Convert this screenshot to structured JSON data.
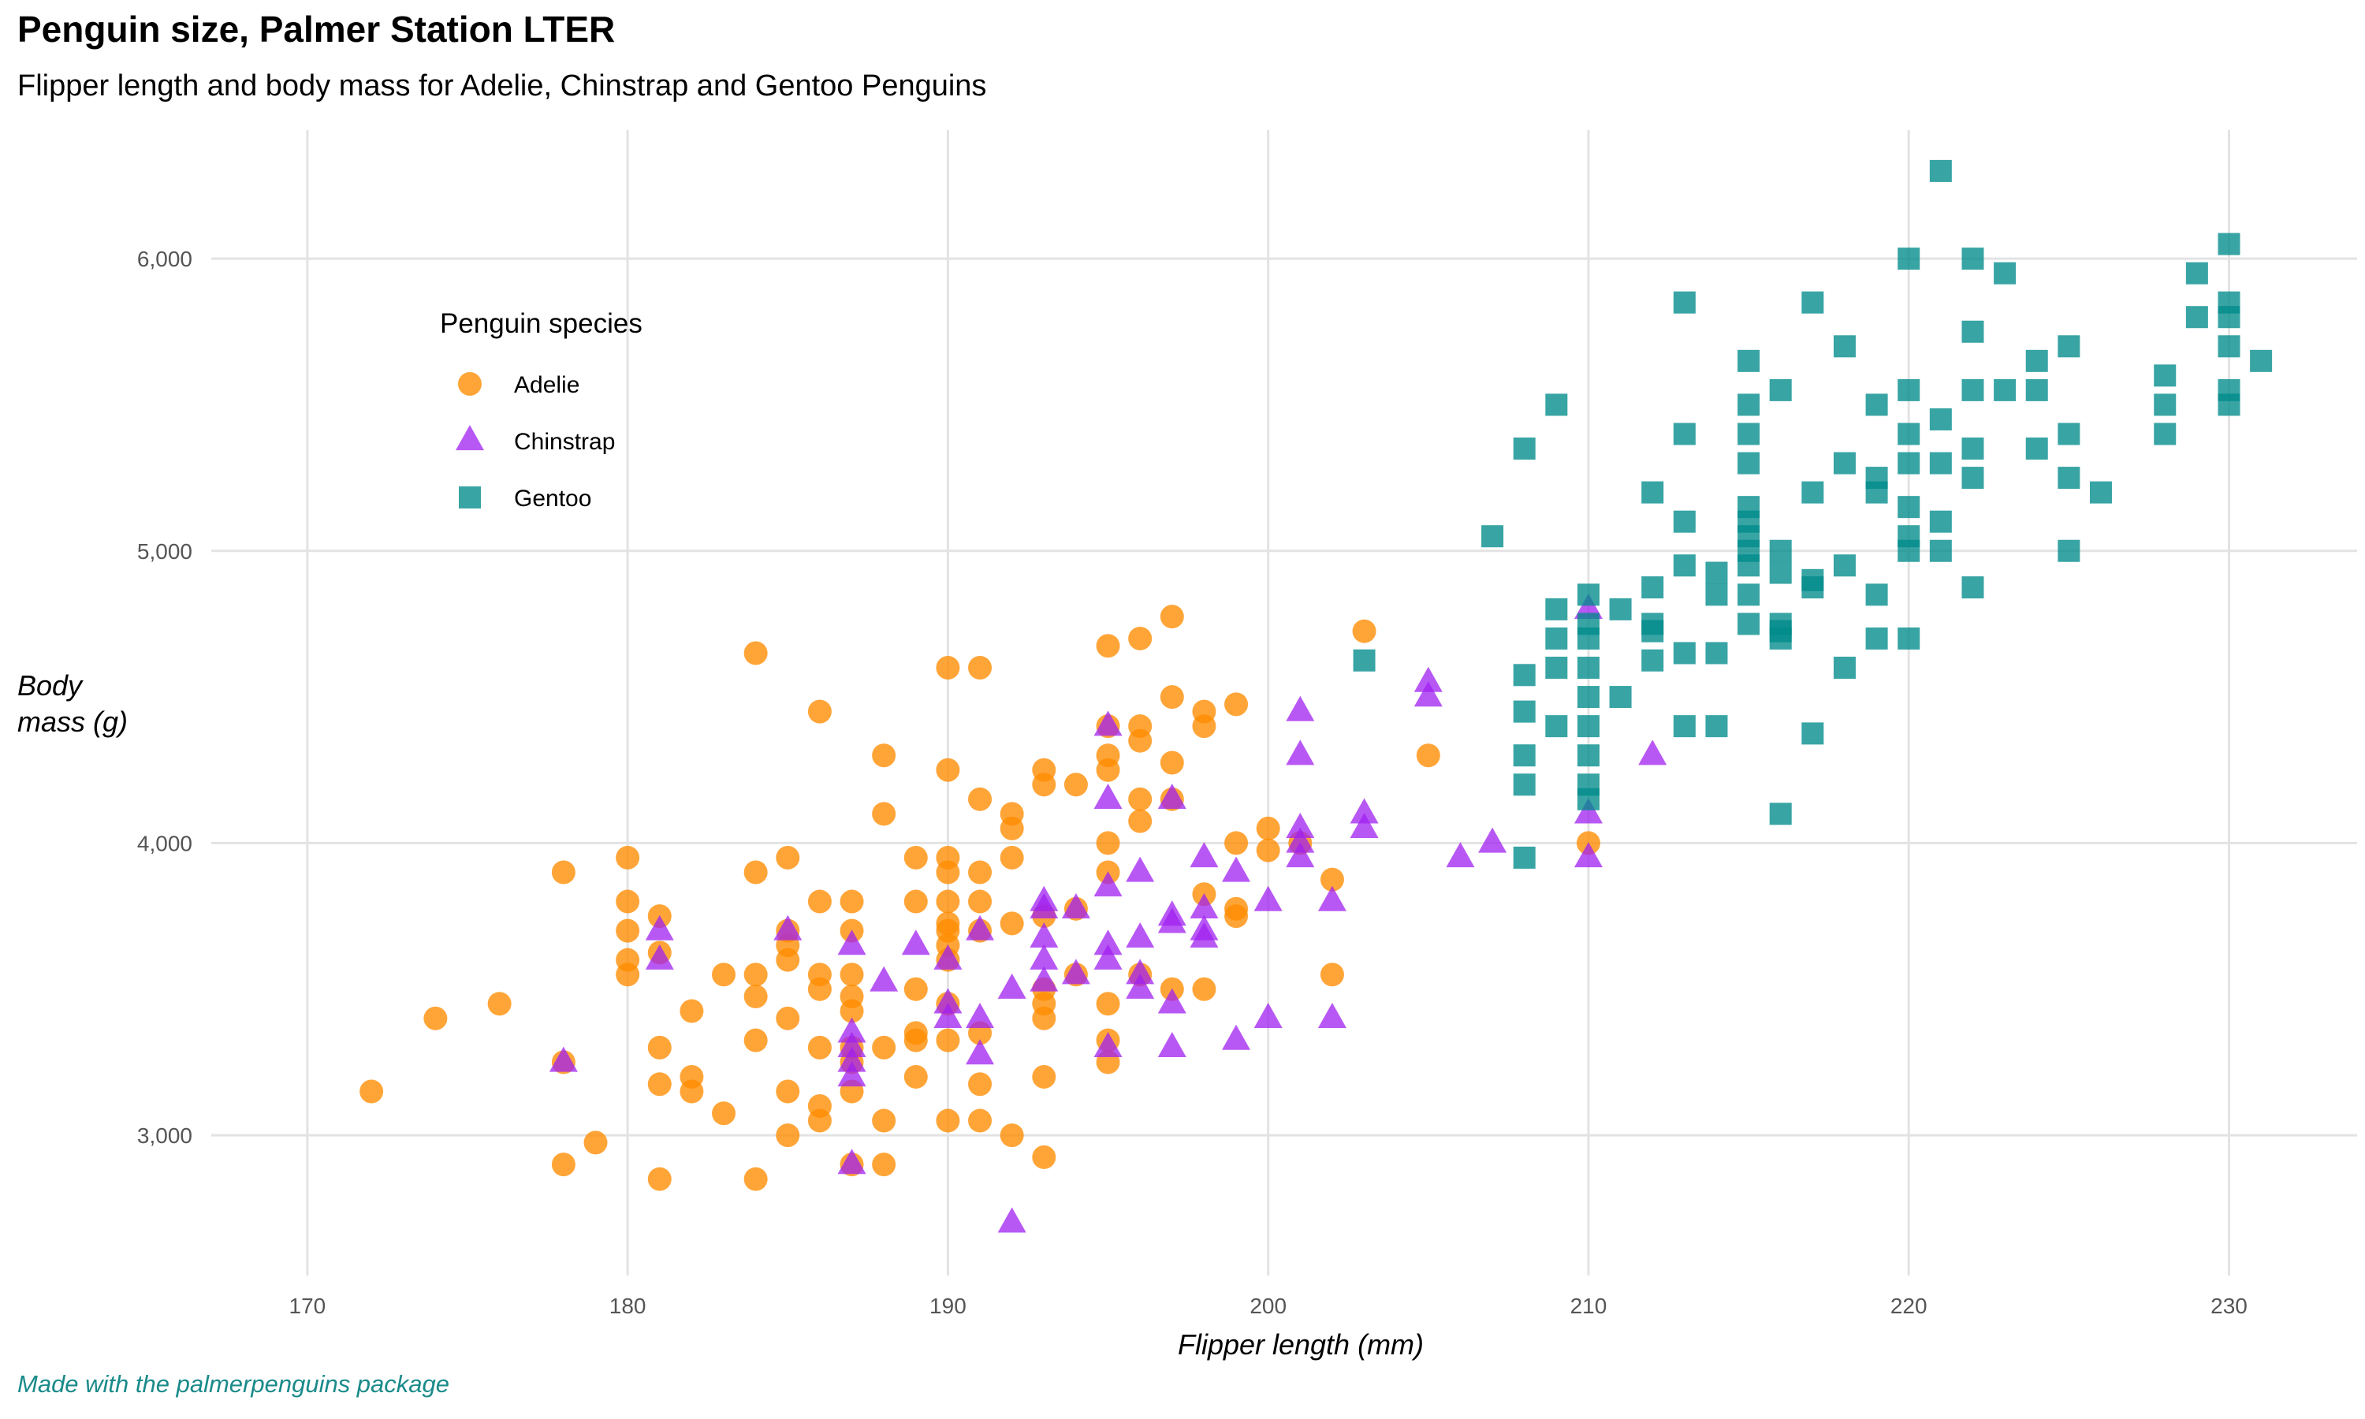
{
  "title": "Penguin size, Palmer Station LTER",
  "subtitle": "Flipper length and body mass for Adelie, Chinstrap and Gentoo Penguins",
  "caption": "Made with the palmerpenguins package",
  "chart_data": {
    "type": "scatter",
    "title": "Penguin size, Palmer Station LTER",
    "subtitle": "Flipper length and body mass for Adelie, Chinstrap and Gentoo Penguins",
    "xlabel": "Flipper length (mm)",
    "ylabel_lines": [
      "Body",
      "mass (g)"
    ],
    "xlim": [
      167,
      234
    ],
    "ylim": [
      2520,
      6440
    ],
    "xticks": [
      170,
      180,
      190,
      200,
      210,
      220,
      230
    ],
    "yticks": [
      3000,
      4000,
      5000,
      6000
    ],
    "ytick_labels": [
      "3,000",
      "4,000",
      "5,000",
      "6,000"
    ],
    "grid": true,
    "legend_title": "Penguin species",
    "legend_position": "inside-top-left",
    "series": [
      {
        "name": "Adelie",
        "shape": "circle",
        "color": "#ff8c00",
        "points": [
          [
            172,
            3150
          ],
          [
            174,
            3400
          ],
          [
            176,
            3450
          ],
          [
            178,
            2900
          ],
          [
            178,
            3900
          ],
          [
            178,
            3250
          ],
          [
            179,
            2975
          ],
          [
            180,
            3950
          ],
          [
            180,
            3800
          ],
          [
            180,
            3700
          ],
          [
            180,
            3600
          ],
          [
            180,
            3550
          ],
          [
            181,
            3750
          ],
          [
            181,
            3625
          ],
          [
            181,
            3300
          ],
          [
            181,
            3175
          ],
          [
            181,
            2850
          ],
          [
            182,
            3425
          ],
          [
            182,
            3200
          ],
          [
            182,
            3150
          ],
          [
            183,
            3550
          ],
          [
            183,
            3075
          ],
          [
            184,
            4650
          ],
          [
            184,
            3900
          ],
          [
            184,
            3550
          ],
          [
            184,
            3475
          ],
          [
            184,
            3325
          ],
          [
            184,
            2850
          ],
          [
            185,
            3950
          ],
          [
            185,
            3700
          ],
          [
            185,
            3650
          ],
          [
            185,
            3600
          ],
          [
            185,
            3400
          ],
          [
            185,
            3150
          ],
          [
            185,
            3000
          ],
          [
            186,
            4450
          ],
          [
            186,
            3800
          ],
          [
            186,
            3550
          ],
          [
            186,
            3500
          ],
          [
            186,
            3300
          ],
          [
            186,
            3100
          ],
          [
            186,
            3050
          ],
          [
            187,
            3800
          ],
          [
            187,
            3700
          ],
          [
            187,
            3550
          ],
          [
            187,
            3475
          ],
          [
            187,
            3425
          ],
          [
            187,
            3300
          ],
          [
            187,
            3250
          ],
          [
            187,
            3150
          ],
          [
            187,
            2900
          ],
          [
            188,
            4300
          ],
          [
            188,
            4100
          ],
          [
            188,
            3300
          ],
          [
            188,
            3050
          ],
          [
            188,
            2900
          ],
          [
            189,
            3950
          ],
          [
            189,
            3800
          ],
          [
            189,
            3500
          ],
          [
            189,
            3350
          ],
          [
            189,
            3325
          ],
          [
            189,
            3200
          ],
          [
            190,
            4600
          ],
          [
            190,
            4250
          ],
          [
            190,
            3950
          ],
          [
            190,
            3900
          ],
          [
            190,
            3800
          ],
          [
            190,
            3725
          ],
          [
            190,
            3700
          ],
          [
            190,
            3650
          ],
          [
            190,
            3600
          ],
          [
            190,
            3450
          ],
          [
            190,
            3325
          ],
          [
            190,
            3050
          ],
          [
            191,
            4600
          ],
          [
            191,
            4150
          ],
          [
            191,
            3900
          ],
          [
            191,
            3800
          ],
          [
            191,
            3700
          ],
          [
            191,
            3350
          ],
          [
            191,
            3175
          ],
          [
            191,
            3050
          ],
          [
            192,
            4100
          ],
          [
            192,
            4050
          ],
          [
            192,
            3950
          ],
          [
            192,
            3725
          ],
          [
            192,
            3000
          ],
          [
            193,
            4250
          ],
          [
            193,
            4200
          ],
          [
            193,
            3750
          ],
          [
            193,
            3500
          ],
          [
            193,
            3450
          ],
          [
            193,
            3400
          ],
          [
            193,
            3200
          ],
          [
            193,
            2925
          ],
          [
            194,
            4200
          ],
          [
            194,
            3775
          ],
          [
            194,
            3550
          ],
          [
            195,
            4675
          ],
          [
            195,
            4400
          ],
          [
            195,
            4300
          ],
          [
            195,
            4250
          ],
          [
            195,
            4000
          ],
          [
            195,
            3900
          ],
          [
            195,
            3450
          ],
          [
            195,
            3325
          ],
          [
            195,
            3250
          ],
          [
            196,
            4700
          ],
          [
            196,
            4400
          ],
          [
            196,
            4350
          ],
          [
            196,
            4150
          ],
          [
            196,
            4075
          ],
          [
            196,
            3550
          ],
          [
            197,
            4775
          ],
          [
            197,
            4500
          ],
          [
            197,
            4275
          ],
          [
            197,
            4150
          ],
          [
            197,
            3500
          ],
          [
            198,
            4450
          ],
          [
            198,
            4400
          ],
          [
            198,
            3825
          ],
          [
            198,
            3500
          ],
          [
            199,
            4475
          ],
          [
            199,
            4000
          ],
          [
            199,
            3775
          ],
          [
            199,
            3750
          ],
          [
            200,
            4050
          ],
          [
            200,
            3975
          ],
          [
            201,
            4000
          ],
          [
            202,
            3875
          ],
          [
            202,
            3550
          ],
          [
            203,
            4725
          ],
          [
            205,
            4300
          ],
          [
            210,
            4000
          ]
        ]
      },
      {
        "name": "Chinstrap",
        "shape": "triangle",
        "color": "#a020f0",
        "points": [
          [
            178,
            3250
          ],
          [
            181,
            3700
          ],
          [
            181,
            3600
          ],
          [
            185,
            3700
          ],
          [
            187,
            3650
          ],
          [
            187,
            3350
          ],
          [
            187,
            3300
          ],
          [
            187,
            3250
          ],
          [
            187,
            3200
          ],
          [
            187,
            2900
          ],
          [
            188,
            3525
          ],
          [
            189,
            3650
          ],
          [
            190,
            3600
          ],
          [
            190,
            3450
          ],
          [
            190,
            3400
          ],
          [
            191,
            3700
          ],
          [
            191,
            3400
          ],
          [
            191,
            3275
          ],
          [
            192,
            3500
          ],
          [
            192,
            2700
          ],
          [
            193,
            3800
          ],
          [
            193,
            3775
          ],
          [
            193,
            3675
          ],
          [
            193,
            3600
          ],
          [
            193,
            3525
          ],
          [
            194,
            3775
          ],
          [
            194,
            3550
          ],
          [
            195,
            4400
          ],
          [
            195,
            4150
          ],
          [
            195,
            3850
          ],
          [
            195,
            3650
          ],
          [
            195,
            3600
          ],
          [
            195,
            3300
          ],
          [
            196,
            3900
          ],
          [
            196,
            3675
          ],
          [
            196,
            3550
          ],
          [
            196,
            3500
          ],
          [
            197,
            4150
          ],
          [
            197,
            3750
          ],
          [
            197,
            3725
          ],
          [
            197,
            3450
          ],
          [
            197,
            3300
          ],
          [
            198,
            3950
          ],
          [
            198,
            3775
          ],
          [
            198,
            3700
          ],
          [
            198,
            3675
          ],
          [
            199,
            3900
          ],
          [
            199,
            3325
          ],
          [
            200,
            3800
          ],
          [
            200,
            3400
          ],
          [
            201,
            4450
          ],
          [
            201,
            4300
          ],
          [
            201,
            4050
          ],
          [
            201,
            4000
          ],
          [
            201,
            3950
          ],
          [
            202,
            3800
          ],
          [
            202,
            3400
          ],
          [
            203,
            4100
          ],
          [
            203,
            4050
          ],
          [
            205,
            4550
          ],
          [
            205,
            4500
          ],
          [
            206,
            3950
          ],
          [
            207,
            4000
          ],
          [
            210,
            4800
          ],
          [
            210,
            4100
          ],
          [
            210,
            3950
          ],
          [
            212,
            4300
          ]
        ]
      },
      {
        "name": "Gentoo",
        "shape": "square",
        "color": "#008b8b",
        "points": [
          [
            203,
            4625
          ],
          [
            207,
            5050
          ],
          [
            208,
            5350
          ],
          [
            208,
            4575
          ],
          [
            208,
            4450
          ],
          [
            208,
            4300
          ],
          [
            208,
            4200
          ],
          [
            208,
            3950
          ],
          [
            209,
            5500
          ],
          [
            209,
            4800
          ],
          [
            209,
            4700
          ],
          [
            209,
            4600
          ],
          [
            209,
            4400
          ],
          [
            210,
            4850
          ],
          [
            210,
            4750
          ],
          [
            210,
            4700
          ],
          [
            210,
            4600
          ],
          [
            210,
            4500
          ],
          [
            210,
            4400
          ],
          [
            210,
            4300
          ],
          [
            210,
            4200
          ],
          [
            210,
            4150
          ],
          [
            211,
            4800
          ],
          [
            211,
            4500
          ],
          [
            212,
            5200
          ],
          [
            212,
            4875
          ],
          [
            212,
            4750
          ],
          [
            212,
            4725
          ],
          [
            212,
            4625
          ],
          [
            213,
            5850
          ],
          [
            213,
            5400
          ],
          [
            213,
            5100
          ],
          [
            213,
            4950
          ],
          [
            213,
            4650
          ],
          [
            213,
            4400
          ],
          [
            214,
            4925
          ],
          [
            214,
            4850
          ],
          [
            214,
            4650
          ],
          [
            214,
            4400
          ],
          [
            215,
            5650
          ],
          [
            215,
            5500
          ],
          [
            215,
            5400
          ],
          [
            215,
            5300
          ],
          [
            215,
            5150
          ],
          [
            215,
            5100
          ],
          [
            215,
            5050
          ],
          [
            215,
            5000
          ],
          [
            215,
            4950
          ],
          [
            215,
            4850
          ],
          [
            215,
            4750
          ],
          [
            216,
            5550
          ],
          [
            216,
            5000
          ],
          [
            216,
            4925
          ],
          [
            216,
            4750
          ],
          [
            216,
            4725
          ],
          [
            216,
            4700
          ],
          [
            216,
            4100
          ],
          [
            217,
            5850
          ],
          [
            217,
            5200
          ],
          [
            217,
            4900
          ],
          [
            217,
            4875
          ],
          [
            217,
            4375
          ],
          [
            218,
            5700
          ],
          [
            218,
            5300
          ],
          [
            218,
            4950
          ],
          [
            218,
            4600
          ],
          [
            219,
            5500
          ],
          [
            219,
            5250
          ],
          [
            219,
            5200
          ],
          [
            219,
            4850
          ],
          [
            219,
            4700
          ],
          [
            220,
            6000
          ],
          [
            220,
            5550
          ],
          [
            220,
            5400
          ],
          [
            220,
            5300
          ],
          [
            220,
            5150
          ],
          [
            220,
            5050
          ],
          [
            220,
            5000
          ],
          [
            220,
            4700
          ],
          [
            221,
            6300
          ],
          [
            221,
            5450
          ],
          [
            221,
            5300
          ],
          [
            221,
            5100
          ],
          [
            221,
            5000
          ],
          [
            222,
            6000
          ],
          [
            222,
            5750
          ],
          [
            222,
            5550
          ],
          [
            222,
            5350
          ],
          [
            222,
            5250
          ],
          [
            222,
            4875
          ],
          [
            223,
            5950
          ],
          [
            223,
            5550
          ],
          [
            224,
            5650
          ],
          [
            224,
            5550
          ],
          [
            224,
            5350
          ],
          [
            225,
            5700
          ],
          [
            225,
            5400
          ],
          [
            225,
            5250
          ],
          [
            225,
            5000
          ],
          [
            226,
            5200
          ],
          [
            228,
            5600
          ],
          [
            228,
            5500
          ],
          [
            228,
            5400
          ],
          [
            229,
            5950
          ],
          [
            229,
            5800
          ],
          [
            230,
            6050
          ],
          [
            230,
            5850
          ],
          [
            230,
            5800
          ],
          [
            230,
            5700
          ],
          [
            230,
            5550
          ],
          [
            230,
            5500
          ],
          [
            231,
            5650
          ]
        ]
      }
    ]
  }
}
